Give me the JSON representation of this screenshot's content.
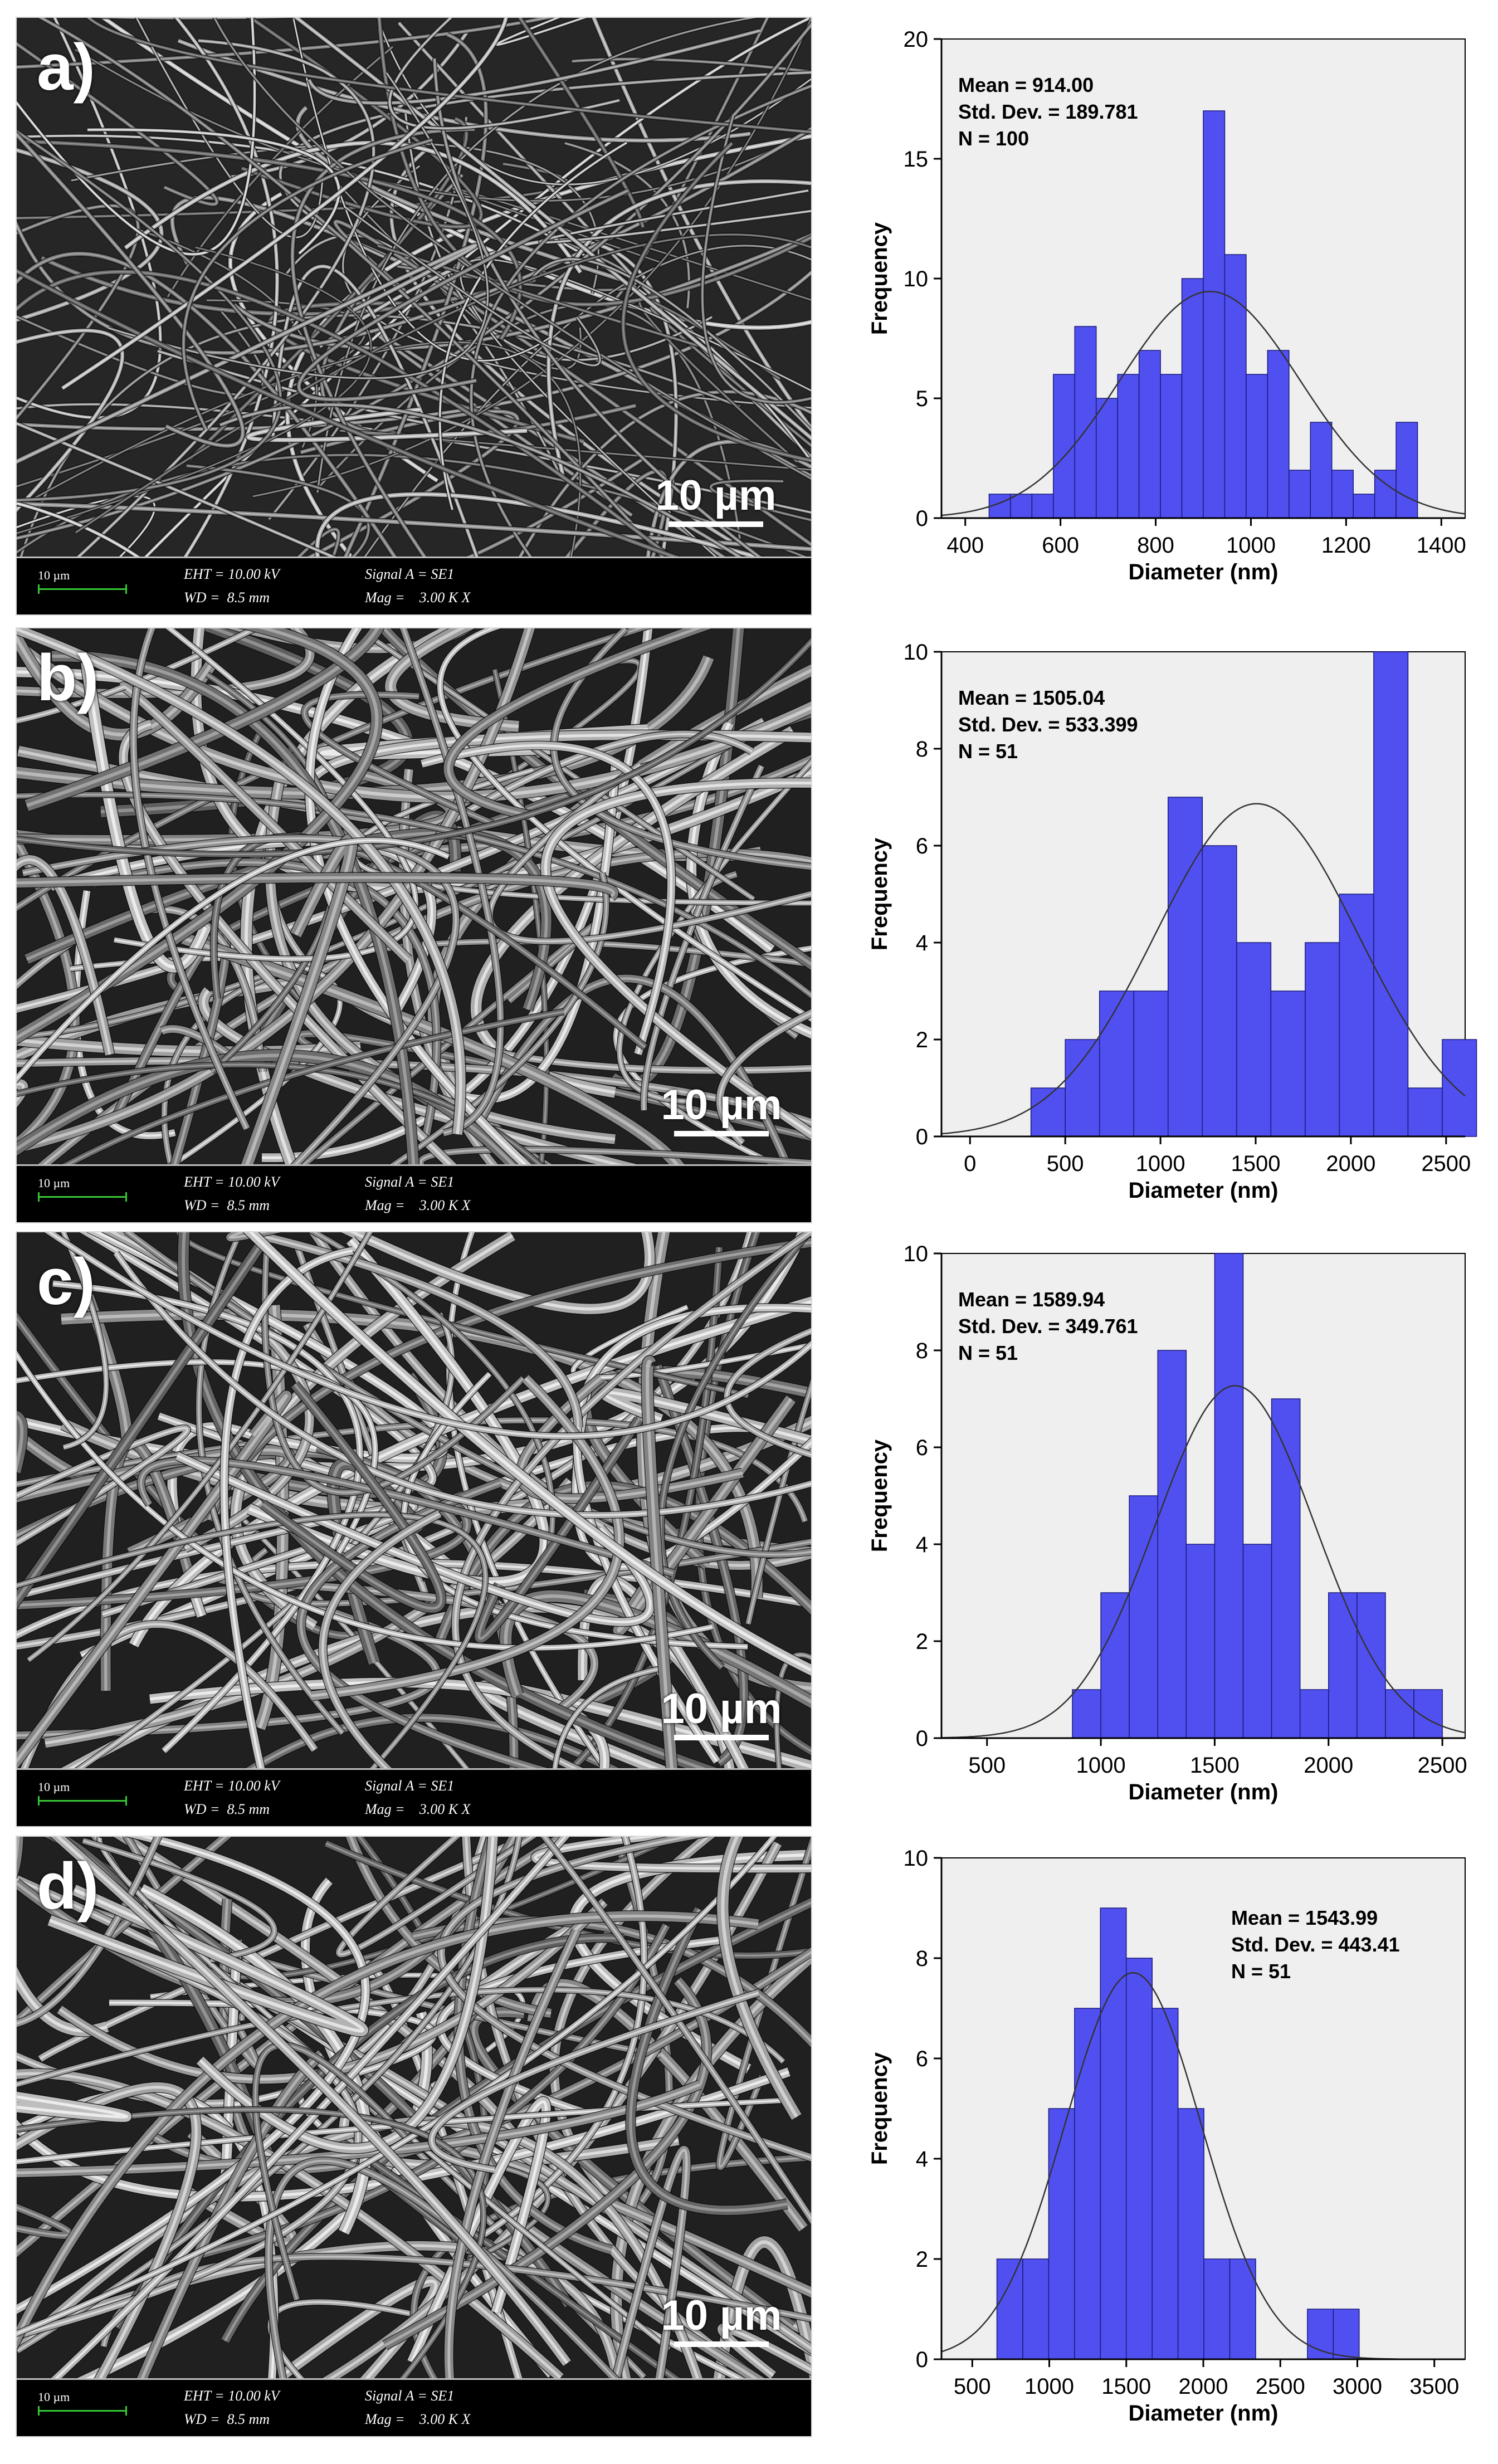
{
  "panels": [
    {
      "letter": "a)",
      "sem": {
        "scale_label": "10 µm",
        "info_scale": "10 µm",
        "eht": "EHT = 10.00 kV",
        "wd": "WD =  8.5 mm",
        "signal": "Signal A = SE1",
        "mag": "Mag =    3.00 K X"
      },
      "stats": {
        "mean": "Mean = 914.00",
        "sd": "Std. Dev. = 189.781",
        "n": "N = 100"
      }
    },
    {
      "letter": "b)",
      "sem": {
        "scale_label": "10 µm",
        "info_scale": "10 µm",
        "eht": "EHT = 10.00 kV",
        "wd": "WD =  8.5 mm",
        "signal": "Signal A = SE1",
        "mag": "Mag =    3.00 K X"
      },
      "stats": {
        "mean": "Mean = 1505.04",
        "sd": "Std. Dev. = 533.399",
        "n": "N = 51"
      }
    },
    {
      "letter": "c)",
      "sem": {
        "scale_label": "10 µm",
        "info_scale": "10 µm",
        "eht": "EHT = 10.00 kV",
        "wd": "WD =  8.5 mm",
        "signal": "Signal A = SE1",
        "mag": "Mag =    3.00 K X"
      },
      "stats": {
        "mean": "Mean = 1589.94",
        "sd": "Std. Dev. = 349.761",
        "n": "N = 51"
      }
    },
    {
      "letter": "d)",
      "sem": {
        "scale_label": "10 µm",
        "info_scale": "10 µm",
        "eht": "EHT = 10.00 kV",
        "wd": "WD =  8.5 mm",
        "signal": "Signal A = SE1",
        "mag": "Mag =    3.00 K X"
      },
      "stats": {
        "mean": "Mean = 1543.99",
        "sd": "Std. Dev. = 443.41",
        "n": "N = 51"
      }
    }
  ],
  "colors": {
    "bar_fill": "#5050F0",
    "bar_edge": "#1a1a7a",
    "plot_bg": "#EFEFEF",
    "curve": "#333333"
  },
  "chart_data": [
    {
      "type": "bar",
      "xlabel": "Diameter (nm)",
      "ylabel": "Frequency",
      "xlim": [
        350,
        1450
      ],
      "ylim": [
        0,
        20
      ],
      "xticks": [
        400,
        600,
        800,
        1000,
        1200,
        1400
      ],
      "yticks": [
        0,
        5,
        10,
        15,
        20
      ],
      "bin_width": 45,
      "bin_start": 450,
      "values": [
        1,
        1,
        1,
        6,
        8,
        5,
        6,
        7,
        6,
        10,
        17,
        11,
        6,
        7,
        2,
        4,
        2,
        1,
        2,
        4
      ],
      "normal_fit": {
        "mean": 914.0,
        "sd": 189.781,
        "n": 100
      },
      "grid": false
    },
    {
      "type": "bar",
      "xlabel": "Diameter (nm)",
      "ylabel": "Frequency",
      "xlim": [
        -150,
        2600
      ],
      "ylim": [
        0,
        10
      ],
      "xticks": [
        0,
        500,
        1000,
        1500,
        2000,
        2500
      ],
      "yticks": [
        0,
        2,
        4,
        6,
        8,
        10
      ],
      "bin_width": 180,
      "bin_start": 320,
      "values": [
        1,
        2,
        3,
        3,
        7,
        6,
        4,
        3,
        4,
        5,
        10,
        1,
        2
      ],
      "normal_fit": {
        "mean": 1505.04,
        "sd": 533.399,
        "n": 51
      },
      "grid": false
    },
    {
      "type": "bar",
      "xlabel": "Diameter (nm)",
      "ylabel": "Frequency",
      "xlim": [
        300,
        2600
      ],
      "ylim": [
        0,
        10
      ],
      "xticks": [
        500,
        1000,
        1500,
        2000,
        2500
      ],
      "yticks": [
        0,
        2,
        4,
        6,
        8,
        10
      ],
      "bin_width": 125,
      "bin_start": 875,
      "values": [
        1,
        3,
        5,
        8,
        4,
        10,
        4,
        7,
        1,
        3,
        3,
        1,
        1
      ],
      "normal_fit": {
        "mean": 1589.94,
        "sd": 349.761,
        "n": 51
      },
      "grid": false
    },
    {
      "type": "bar",
      "xlabel": "Diameter (nm)",
      "ylabel": "Frequency",
      "xlim": [
        300,
        3700
      ],
      "ylim": [
        0,
        10
      ],
      "xticks": [
        500,
        1000,
        1500,
        2000,
        2500,
        3000,
        3500
      ],
      "yticks": [
        0,
        2,
        4,
        6,
        8,
        10
      ],
      "bin_width": 168,
      "bin_start": 660,
      "values": [
        2,
        2,
        5,
        7,
        9,
        8,
        7,
        5,
        2,
        2,
        0,
        0,
        1,
        1
      ],
      "normal_fit": {
        "mean": 1543.99,
        "sd": 443.41,
        "n": 51
      },
      "grid": false
    }
  ]
}
